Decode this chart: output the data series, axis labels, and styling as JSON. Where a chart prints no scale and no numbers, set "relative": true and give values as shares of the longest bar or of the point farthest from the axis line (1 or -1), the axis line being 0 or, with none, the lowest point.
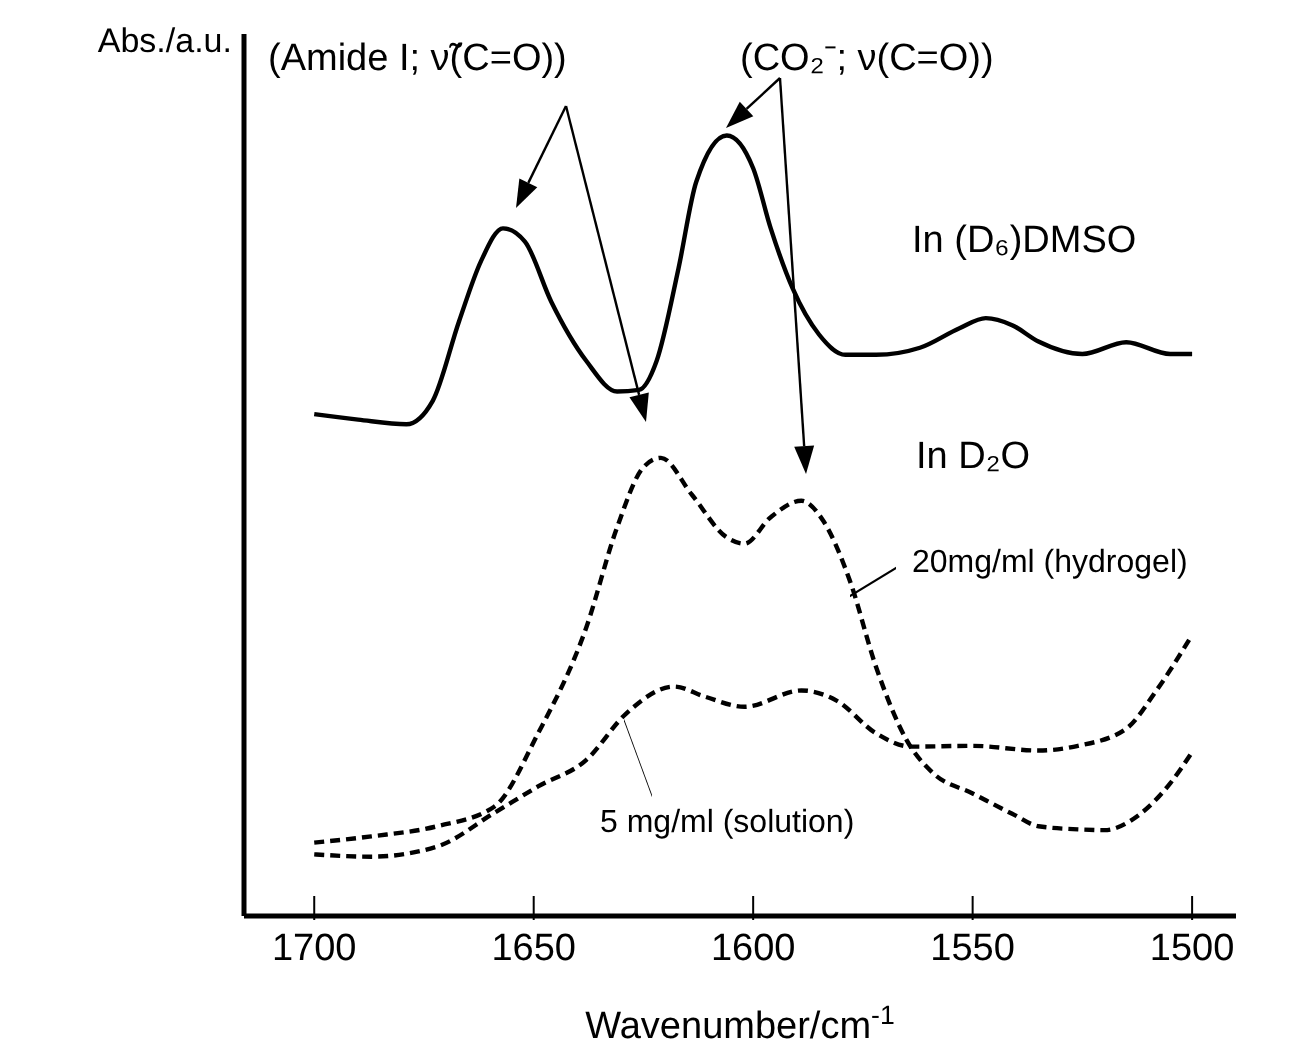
{
  "chart_data": {
    "type": "line",
    "ylabel": "Abs./a.u.",
    "xlabel": "Wavenumber/cm$^{-1}$",
    "relative": true,
    "xlim": [
      1716,
      1490
    ],
    "xticks": [
      1700,
      1650,
      1600,
      1550,
      1500
    ],
    "marker": "none",
    "annotations": [
      "(Amide I; ν̃(C=O))",
      "(CO₂⁻; ν(C=O))",
      "In D₂O"
    ],
    "series": [
      {
        "name": "In (D₆)DMSO",
        "color": "#000000",
        "line_style": "solid",
        "x": [
          1700,
          1690,
          1679,
          1673,
          1667,
          1662,
          1657,
          1652,
          1646,
          1638,
          1631,
          1626,
          1622,
          1617,
          1613,
          1606,
          1600,
          1596,
          1591,
          1585,
          1579,
          1572,
          1562,
          1553,
          1547,
          1541,
          1535,
          1525,
          1515,
          1505,
          1500
        ],
        "values": [
          0.643,
          0.636,
          0.63,
          0.66,
          0.762,
          0.839,
          0.881,
          0.864,
          0.787,
          0.711,
          0.672,
          0.674,
          0.711,
          0.83,
          0.94,
          1.0,
          0.958,
          0.881,
          0.804,
          0.745,
          0.719,
          0.719,
          0.728,
          0.753,
          0.766,
          0.757,
          0.736,
          0.72,
          0.735,
          0.72,
          0.72
        ]
      },
      {
        "name": "20mg/ml (hydrogel)",
        "color": "#000000",
        "line_style": "dashed",
        "x": [
          1700,
          1687,
          1672,
          1659,
          1649,
          1638,
          1631,
          1625,
          1621,
          1614,
          1606,
          1602,
          1596,
          1589,
          1584,
          1578,
          1572,
          1565,
          1559,
          1550,
          1541,
          1535,
          1526,
          1520,
          1512,
          1505,
          1500
        ],
        "values": [
          0.094,
          0.102,
          0.115,
          0.14,
          0.234,
          0.37,
          0.498,
          0.575,
          0.587,
          0.54,
          0.485,
          0.477,
          0.511,
          0.532,
          0.506,
          0.43,
          0.319,
          0.225,
          0.183,
          0.157,
          0.131,
          0.115,
          0.111,
          0.11,
          0.13,
          0.17,
          0.21
        ]
      },
      {
        "name": "5 mg/ml (solution)",
        "color": "#000000",
        "line_style": "dashed",
        "x": [
          1700,
          1687,
          1672,
          1659,
          1649,
          1638,
          1629,
          1618,
          1611,
          1602,
          1589,
          1581,
          1572,
          1564,
          1550,
          1535,
          1526,
          1515,
          1508,
          1500
        ],
        "values": [
          0.079,
          0.076,
          0.089,
          0.132,
          0.166,
          0.2,
          0.259,
          0.294,
          0.281,
          0.268,
          0.289,
          0.276,
          0.234,
          0.217,
          0.218,
          0.212,
          0.218,
          0.24,
          0.29,
          0.36
        ]
      }
    ]
  }
}
